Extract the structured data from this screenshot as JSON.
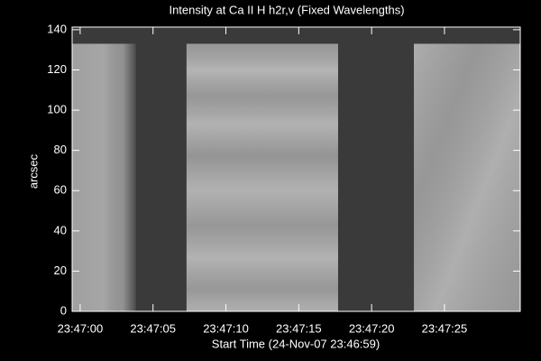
{
  "chart_data": {
    "type": "image",
    "title": "Intensity at Ca II H h2r,v (Fixed Wavelengths)",
    "x_label": "Start Time (24-Nov-07 23:46:59)",
    "y_label": "arcsec",
    "xlim": [
      0.45,
      31.2
    ],
    "xticks": [
      {
        "value": 1,
        "label": "23:47:00"
      },
      {
        "value": 6,
        "label": "23:47:05"
      },
      {
        "value": 11,
        "label": "23:47:10"
      },
      {
        "value": 16,
        "label": "23:47:15"
      },
      {
        "value": 21,
        "label": "23:47:20"
      },
      {
        "value": 26,
        "label": "23:47:25"
      }
    ],
    "ylim": [
      0,
      141.3
    ],
    "yticks": [
      0,
      20,
      40,
      60,
      80,
      100,
      120,
      140
    ],
    "background_color": "#3a3a3a",
    "blocks": [
      {
        "x": [
          0.45,
          4.8
        ],
        "y": [
          0,
          133
        ],
        "color": "#9a9a9a"
      },
      {
        "x": [
          8.3,
          18.7
        ],
        "y": [
          0,
          133
        ],
        "color": "#a8a8a8"
      },
      {
        "x": [
          23.9,
          31.2
        ],
        "y": [
          0,
          133
        ],
        "color": "#a4a4a4"
      }
    ]
  }
}
